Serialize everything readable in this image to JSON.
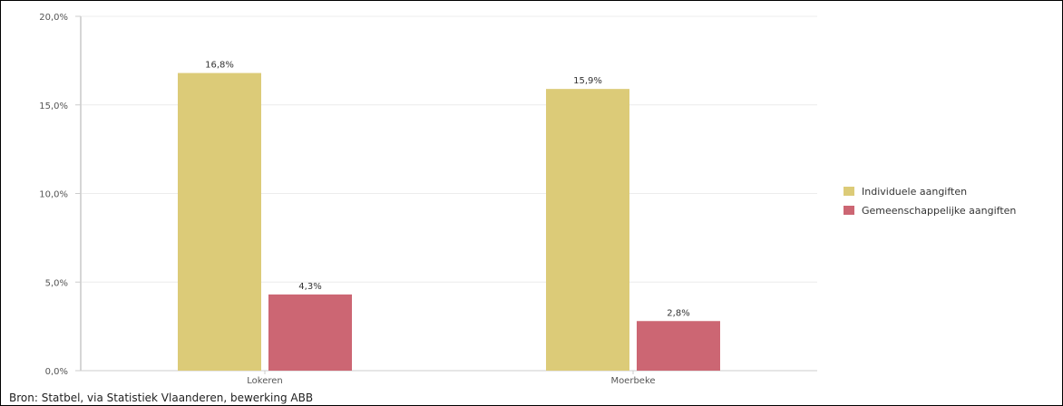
{
  "chart_data": {
    "type": "bar",
    "categories": [
      "Lokeren",
      "Moerbeke"
    ],
    "series": [
      {
        "name": "Individuele aangiften",
        "values": [
          16.8,
          15.9
        ],
        "labels": [
          "16,8%",
          "15,9%"
        ],
        "color": "#dccb78"
      },
      {
        "name": "Gemeenschappelijke aangiften",
        "values": [
          4.3,
          2.8
        ],
        "labels": [
          "4,3%",
          "2,8%"
        ],
        "color": "#cc6673"
      }
    ],
    "ylim": [
      0,
      20
    ],
    "yticks": [
      {
        "value": 0,
        "label": "0,0%"
      },
      {
        "value": 5,
        "label": "5,0%"
      },
      {
        "value": 10,
        "label": "10,0%"
      },
      {
        "value": 15,
        "label": "15,0%"
      },
      {
        "value": 20,
        "label": "20,0%"
      }
    ],
    "grid": true,
    "legend_position": "right",
    "title": "",
    "xlabel": "",
    "ylabel": ""
  },
  "source_note": "Bron: Statbel, via Statistiek Vlaanderen, bewerking ABB"
}
